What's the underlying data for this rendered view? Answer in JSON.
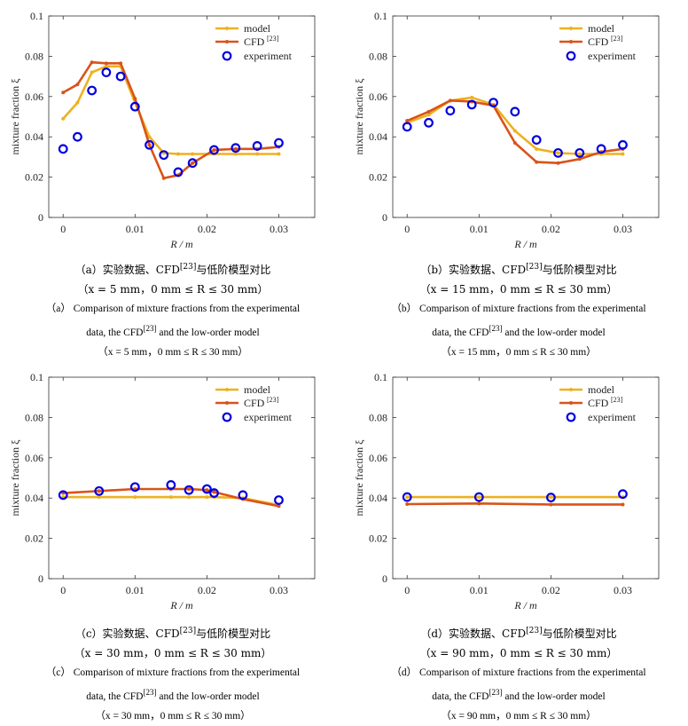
{
  "chart_data": [
    {
      "type": "line",
      "ylabel": "mixture fraction ξ",
      "xlabel": "R / m",
      "xlim": [
        -0.002,
        0.035
      ],
      "ylim": [
        0,
        0.1
      ],
      "xticks": [
        "0",
        "0.01",
        "0.02",
        "0.03"
      ],
      "yticks": [
        "0",
        "0.02",
        "0.04",
        "0.06",
        "0.08",
        "0.1"
      ],
      "legend": {
        "position": "top-right",
        "model": "model",
        "cfd": "CFD",
        "cfd_ref": "[23]",
        "experiment": "experiment"
      },
      "series": [
        {
          "name": "model",
          "color": "#EDB120",
          "x": [
            0,
            0.002,
            0.004,
            0.006,
            0.008,
            0.01,
            0.012,
            0.014,
            0.016,
            0.018,
            0.021,
            0.024,
            0.027,
            0.03
          ],
          "y": [
            0.049,
            0.057,
            0.072,
            0.075,
            0.075,
            0.057,
            0.04,
            0.032,
            0.0315,
            0.0315,
            0.0315,
            0.0315,
            0.0315,
            0.0315
          ]
        },
        {
          "name": "CFD [23]",
          "color": "#D95319",
          "x": [
            0,
            0.002,
            0.004,
            0.006,
            0.008,
            0.01,
            0.012,
            0.014,
            0.016,
            0.018,
            0.021,
            0.024,
            0.027,
            0.03
          ],
          "y": [
            0.062,
            0.066,
            0.077,
            0.0765,
            0.0765,
            0.059,
            0.036,
            0.0195,
            0.021,
            0.027,
            0.0335,
            0.034,
            0.034,
            0.035
          ]
        },
        {
          "name": "experiment",
          "color": "#0000E0",
          "x": [
            0,
            0.002,
            0.004,
            0.006,
            0.008,
            0.01,
            0.012,
            0.014,
            0.016,
            0.018,
            0.021,
            0.024,
            0.027,
            0.03
          ],
          "y": [
            0.034,
            0.04,
            0.063,
            0.072,
            0.07,
            0.055,
            0.036,
            0.031,
            0.0225,
            0.027,
            0.0335,
            0.0345,
            0.0355,
            0.037
          ]
        }
      ]
    },
    {
      "type": "line",
      "ylabel": "mixture fraction ξ",
      "xlabel": "R / m",
      "xlim": [
        -0.002,
        0.035
      ],
      "ylim": [
        0,
        0.1
      ],
      "xticks": [
        "0",
        "0.01",
        "0.02",
        "0.03"
      ],
      "yticks": [
        "0",
        "0.02",
        "0.04",
        "0.06",
        "0.08",
        "0.1"
      ],
      "legend": {
        "position": "top-right",
        "model": "model",
        "cfd": "CFD",
        "cfd_ref": "[23]",
        "experiment": "experiment"
      },
      "series": [
        {
          "name": "model",
          "color": "#EDB120",
          "x": [
            0,
            0.003,
            0.006,
            0.009,
            0.012,
            0.015,
            0.018,
            0.021,
            0.024,
            0.027,
            0.03
          ],
          "y": [
            0.047,
            0.051,
            0.058,
            0.0595,
            0.056,
            0.043,
            0.034,
            0.032,
            0.0315,
            0.0315,
            0.0315
          ]
        },
        {
          "name": "CFD [23]",
          "color": "#D95319",
          "x": [
            0,
            0.003,
            0.006,
            0.009,
            0.012,
            0.015,
            0.018,
            0.021,
            0.024,
            0.027,
            0.03
          ],
          "y": [
            0.048,
            0.0525,
            0.058,
            0.0575,
            0.0555,
            0.037,
            0.0275,
            0.027,
            0.029,
            0.0325,
            0.034
          ]
        },
        {
          "name": "experiment",
          "color": "#0000E0",
          "x": [
            0,
            0.003,
            0.006,
            0.009,
            0.012,
            0.015,
            0.018,
            0.021,
            0.024,
            0.027,
            0.03
          ],
          "y": [
            0.045,
            0.047,
            0.053,
            0.056,
            0.057,
            0.0525,
            0.0385,
            0.032,
            0.032,
            0.034,
            0.036
          ]
        }
      ]
    },
    {
      "type": "line",
      "ylabel": "mixture fraction ξ",
      "xlabel": "R / m",
      "xlim": [
        -0.002,
        0.035
      ],
      "ylim": [
        0,
        0.1
      ],
      "xticks": [
        "0",
        "0.01",
        "0.02",
        "0.03"
      ],
      "yticks": [
        "0",
        "0.02",
        "0.04",
        "0.06",
        "0.08",
        "0.1"
      ],
      "legend": {
        "position": "top-right",
        "model": "model",
        "cfd": "CFD",
        "cfd_ref": "[23]",
        "experiment": "experiment"
      },
      "series": [
        {
          "name": "model",
          "color": "#EDB120",
          "x": [
            0,
            0.005,
            0.01,
            0.015,
            0.0175,
            0.02,
            0.021,
            0.025,
            0.03
          ],
          "y": [
            0.0405,
            0.0405,
            0.0405,
            0.0405,
            0.0405,
            0.0405,
            0.0405,
            0.04,
            0.0365
          ]
        },
        {
          "name": "CFD [23]",
          "color": "#D95319",
          "x": [
            0,
            0.005,
            0.01,
            0.015,
            0.0175,
            0.02,
            0.021,
            0.025,
            0.03
          ],
          "y": [
            0.0425,
            0.0435,
            0.0445,
            0.0445,
            0.0445,
            0.044,
            0.043,
            0.0395,
            0.036
          ]
        },
        {
          "name": "experiment",
          "color": "#0000E0",
          "x": [
            0,
            0.005,
            0.01,
            0.015,
            0.0175,
            0.02,
            0.021,
            0.025,
            0.03
          ],
          "y": [
            0.0415,
            0.0435,
            0.0455,
            0.0465,
            0.044,
            0.0445,
            0.0425,
            0.0415,
            0.039
          ]
        }
      ]
    },
    {
      "type": "line",
      "ylabel": "mixture fraction ξ",
      "xlabel": "R / m",
      "xlim": [
        -0.002,
        0.035
      ],
      "ylim": [
        0,
        0.1
      ],
      "xticks": [
        "0",
        "0.01",
        "0.02",
        "0.03"
      ],
      "yticks": [
        "0",
        "0.02",
        "0.04",
        "0.06",
        "0.08",
        "0.1"
      ],
      "legend": {
        "position": "top-right",
        "model": "model",
        "cfd": "CFD",
        "cfd_ref": "[23]",
        "experiment": "experiment"
      },
      "series": [
        {
          "name": "model",
          "color": "#EDB120",
          "x": [
            0,
            0.01,
            0.02,
            0.03
          ],
          "y": [
            0.0405,
            0.0405,
            0.0405,
            0.0405
          ]
        },
        {
          "name": "CFD [23]",
          "color": "#D95319",
          "x": [
            0,
            0.01,
            0.02,
            0.03
          ],
          "y": [
            0.037,
            0.0373,
            0.0368,
            0.0368
          ]
        },
        {
          "name": "experiment",
          "color": "#0000E0",
          "x": [
            0,
            0.01,
            0.02,
            0.03
          ],
          "y": [
            0.0405,
            0.0405,
            0.0403,
            0.042
          ]
        }
      ]
    }
  ],
  "captions": [
    {
      "zh": "（a）实验数据、CFD",
      "zh_ref": "[23]",
      "zh_tail": "与低阶模型对比",
      "zh2": "（x = 5 mm，0 mm ≤ R ≤ 30 mm）",
      "en1": "（a） Comparison of mixture fractions from the experimental",
      "en2a": "data, the CFD",
      "en2ref": "[23]",
      "en2b": " and the low-order model",
      "en3": "（x = 5 mm，0 mm ≤ R ≤ 30 mm）"
    },
    {
      "zh": "（b）实验数据、CFD",
      "zh_ref": "[23]",
      "zh_tail": "与低阶模型对比",
      "zh2": "（x = 15 mm，0 mm ≤ R ≤ 30 mm）",
      "en1": "（b） Comparison of mixture fractions from the experimental",
      "en2a": "data, the CFD",
      "en2ref": "[23]",
      "en2b": " and the low-order model",
      "en3": "（x = 15 mm，0 mm ≤ R ≤ 30 mm）"
    },
    {
      "zh": "（c）实验数据、CFD",
      "zh_ref": "[23]",
      "zh_tail": "与低阶模型对比",
      "zh2": "（x = 30 mm，0 mm ≤ R ≤ 30 mm）",
      "en1": "（c） Comparison of mixture fractions from the experimental",
      "en2a": "data, the CFD",
      "en2ref": "[23]",
      "en2b": " and the low-order model",
      "en3": "（x = 30 mm，0 mm ≤ R ≤ 30 mm）"
    },
    {
      "zh": "（d）实验数据、CFD",
      "zh_ref": "[23]",
      "zh_tail": "与低阶模型对比",
      "zh2": "（x = 90 mm，0 mm ≤ R ≤ 30 mm）",
      "en1": "（d） Comparison of mixture fractions from the experimental",
      "en2a": "data, the CFD",
      "en2ref": "[23]",
      "en2b": " and the low-order model",
      "en3": "（x = 90 mm，0 mm ≤ R ≤ 30 mm）"
    }
  ]
}
